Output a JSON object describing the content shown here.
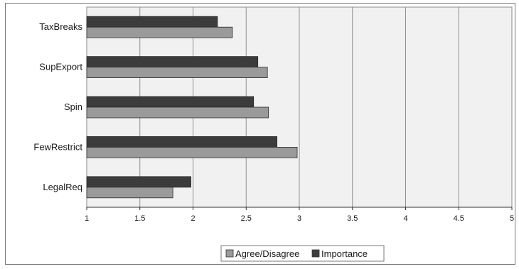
{
  "chart_data": {
    "type": "bar",
    "orientation": "horizontal",
    "title": "",
    "xlabel": "",
    "ylabel": "",
    "categories": [
      "TaxBreaks",
      "SupExport",
      "Spin",
      "FewRestrict",
      "LegalReq"
    ],
    "series": [
      {
        "name": "Importance",
        "values": [
          2.23,
          2.61,
          2.57,
          2.79,
          1.98
        ],
        "color": "#3c3c3c"
      },
      {
        "name": "Agree/Disagree",
        "values": [
          2.37,
          2.7,
          2.71,
          2.98,
          1.81
        ],
        "color": "#9a9a9a"
      }
    ],
    "xlim": [
      1,
      5
    ],
    "x_ticks": [
      "1",
      "1.5",
      "2",
      "2.5",
      "3",
      "3.5",
      "4",
      "4.5",
      "5"
    ],
    "grid": true,
    "legend": {
      "position": "bottom",
      "entries": [
        "Agree/Disagree",
        "Importance"
      ]
    },
    "plot_background": "#f1f1f1"
  }
}
